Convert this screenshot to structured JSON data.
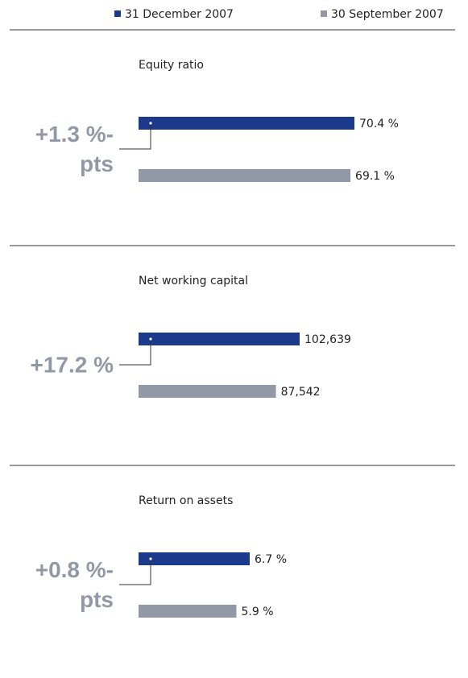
{
  "legend": [
    {
      "name": "31 December 2007",
      "color": "#1b3a8c"
    },
    {
      "name": "30 September 2007",
      "color": "#9299a6"
    }
  ],
  "chart_data": [
    {
      "type": "bar",
      "title": "Equity ratio",
      "values": [
        70.4,
        69.1
      ],
      "value_labels": [
        "70.4 %",
        "69.1 %"
      ],
      "annotation": "+1.3 %-pts"
    },
    {
      "type": "bar",
      "title": "Net working capital",
      "values": [
        102639,
        87542
      ],
      "value_labels": [
        "102,639",
        "87,542"
      ],
      "annotation": "+17.2 %"
    },
    {
      "type": "bar",
      "title": "Return on assets",
      "values": [
        6.7,
        5.9
      ],
      "value_labels": [
        "6.7 %",
        "5.9 %"
      ],
      "annotation": "+0.8 %-pts"
    }
  ]
}
